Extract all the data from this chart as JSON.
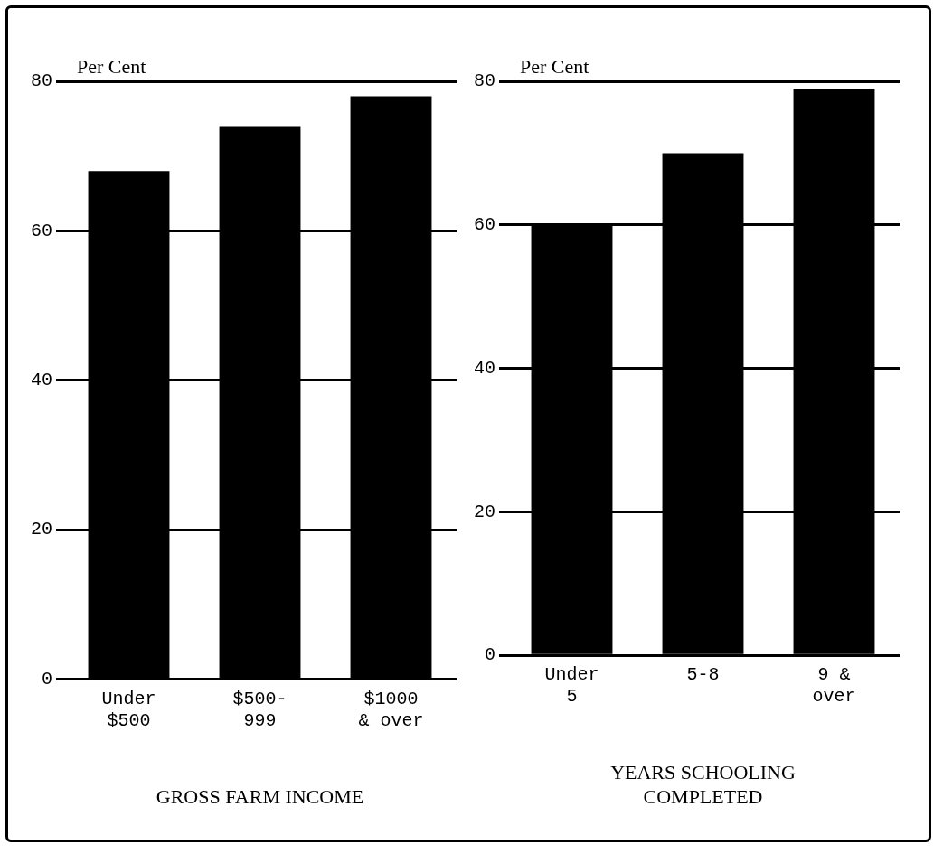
{
  "chart_data": [
    {
      "type": "bar",
      "ylabel": "Per Cent",
      "xlabel": "GROSS FARM INCOME",
      "categories": [
        "Under\n$500",
        "$500-\n999",
        "$1000\n& over"
      ],
      "values": [
        68,
        74,
        78
      ],
      "color": "#000000",
      "ylim": [
        0,
        80
      ],
      "yticks": [
        0,
        20,
        40,
        60,
        80
      ],
      "grid": "y"
    },
    {
      "type": "bar",
      "ylabel": "Per Cent",
      "xlabel": "YEARS SCHOOLING\nCOMPLETED",
      "categories": [
        "Under\n5",
        "5-8",
        "9 &\nover"
      ],
      "values": [
        60,
        70,
        79
      ],
      "color": "#000000",
      "ylim": [
        0,
        80
      ],
      "yticks": [
        0,
        20,
        40,
        60,
        80
      ],
      "grid": "y"
    }
  ]
}
